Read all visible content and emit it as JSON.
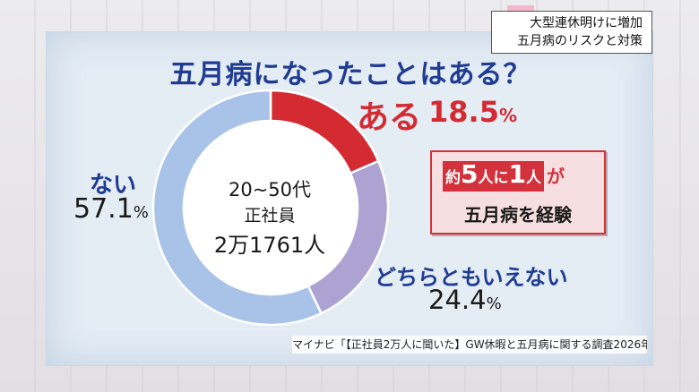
{
  "header": {
    "line1": "大型連休明けに増加",
    "line2": "五月病のリスクと対策"
  },
  "chart_data": {
    "type": "pie",
    "variant": "donut",
    "title": "五月病になったことはある？",
    "center_text": [
      "20~50代",
      "正社員",
      "2万1761人"
    ],
    "slices": [
      {
        "label": "ある",
        "value": 18.5,
        "display": "18.5",
        "color": "#d42b33"
      },
      {
        "label": "どちらともいえない",
        "value": 24.4,
        "display": "24.4",
        "color": "#ada3d3"
      },
      {
        "label": "ない",
        "value": 57.1,
        "display": "57.1",
        "color": "#a9c3e8"
      }
    ],
    "unit": "%",
    "start_angle_deg": 0,
    "direction": "clockwise",
    "legend": "none"
  },
  "callout": {
    "prefix": "約",
    "num1": "5",
    "unit1": "人",
    "particle": "に",
    "num2": "1",
    "unit2": "人",
    "suffix": "が",
    "line2": "五月病を経験"
  },
  "source": "マイナビ「【正社員2万人に聞いた】GW休暇と五月病に関する調査2026年」",
  "colors": {
    "title_blue": "#1f3c92",
    "accent_red": "#d42b33",
    "panel": "#e4ecf4"
  }
}
